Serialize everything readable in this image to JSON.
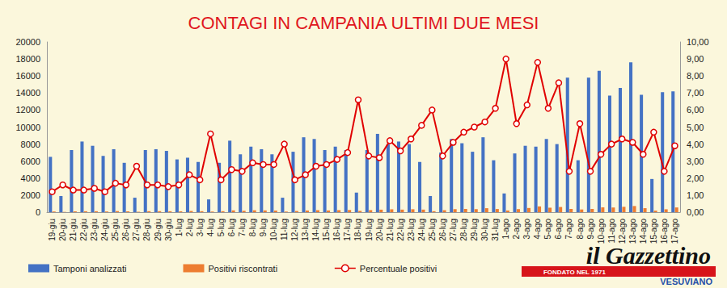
{
  "chart_data": {
    "type": "bar",
    "title": "CONTAGI IN CAMPANIA ULTIMI DUE MESI",
    "annotations": [
      "il Gazzettino",
      "VESUVIANO",
      "FONDATO NEL 1971"
    ],
    "categories": [
      "19-giu",
      "20-giu",
      "21-giu",
      "22-giu",
      "23-giu",
      "24-giu",
      "25-giu",
      "26-giu",
      "27-giu",
      "28-giu",
      "29-giu",
      "30-giu",
      "1-lug",
      "2-lug",
      "3-lug",
      "4-lug",
      "5-lug",
      "6-lug",
      "7-lug",
      "8-lug",
      "9-lug",
      "10-lug",
      "11-lug",
      "12-lug",
      "13-lug",
      "14-lug",
      "15-lug",
      "16-lug",
      "17-lug",
      "18-lug",
      "19-lug",
      "20-lug",
      "21-lug",
      "22-lug",
      "23-lug",
      "24-lug",
      "25-lug",
      "26-lug",
      "27-lug",
      "28-lug",
      "29-lug",
      "30-lug",
      "31-lug",
      "1-ago",
      "2-ago",
      "3-ago",
      "4-ago",
      "5-ago",
      "6-ago",
      "7-ago",
      "8-ago",
      "9-ago",
      "10-ago",
      "11-ago",
      "12-ago",
      "13-ago",
      "14-ago",
      "15-ago",
      "16-ago",
      "17-ago"
    ],
    "series": [
      {
        "name": "Tamponi analizzati",
        "type": "bar",
        "color": "#4472c4",
        "values": [
          6500,
          1900,
          7300,
          8300,
          7800,
          6600,
          7400,
          5800,
          1700,
          7300,
          7400,
          7200,
          6200,
          6400,
          5900,
          1500,
          5800,
          8400,
          6800,
          7700,
          7400,
          6800,
          1700,
          7100,
          8800,
          8600,
          7300,
          7700,
          7300,
          2300,
          7300,
          9200,
          8000,
          8300,
          8000,
          5900,
          1900,
          7000,
          8600,
          8100,
          7100,
          8800,
          6100,
          2200,
          6900,
          7800,
          7700,
          8600,
          8000,
          15800,
          6100,
          15800,
          16600,
          13700,
          14600,
          17600,
          13800,
          3900,
          14100,
          14200
        ]
      },
      {
        "name": "Positivi riscontrati",
        "type": "bar",
        "color": "#ed7d31",
        "values": [
          78,
          30,
          95,
          108,
          109,
          79,
          126,
          93,
          46,
          117,
          118,
          108,
          99,
          141,
          112,
          69,
          110,
          210,
          163,
          223,
          207,
          190,
          68,
          135,
          194,
          232,
          204,
          239,
          256,
          152,
          241,
          294,
          336,
          299,
          344,
          301,
          114,
          231,
          353,
          381,
          355,
          466,
          372,
          198,
          359,
          491,
          678,
          525,
          608,
          379,
          317,
          379,
          564,
          548,
          628,
          722,
          469,
          183,
          338,
          554
        ]
      },
      {
        "name": "Percentuale positivi",
        "type": "line",
        "axis": "y2",
        "color": "#e00000",
        "marker": "circle",
        "values": [
          1.2,
          1.6,
          1.3,
          1.3,
          1.4,
          1.2,
          1.7,
          1.6,
          2.7,
          1.6,
          1.6,
          1.5,
          1.6,
          2.2,
          1.9,
          4.6,
          1.9,
          2.5,
          2.4,
          2.9,
          2.8,
          2.8,
          4.0,
          1.9,
          2.2,
          2.7,
          2.8,
          3.1,
          3.5,
          6.6,
          3.3,
          3.2,
          4.2,
          3.6,
          4.3,
          5.1,
          6.0,
          3.3,
          4.1,
          4.7,
          5.0,
          5.3,
          6.1,
          9.0,
          5.2,
          6.3,
          8.8,
          6.1,
          7.6,
          2.4,
          5.2,
          2.4,
          3.4,
          4.0,
          4.3,
          4.1,
          3.4,
          4.7,
          2.4,
          3.9
        ]
      }
    ],
    "ylim": [
      0,
      20000
    ],
    "yticks": [
      0,
      2000,
      4000,
      6000,
      8000,
      10000,
      12000,
      14000,
      16000,
      18000,
      20000
    ],
    "y2lim": [
      0,
      10
    ],
    "y2ticks": [
      {
        "value": 0,
        "label": "0,00"
      },
      {
        "value": 1,
        "label": "1,00"
      },
      {
        "value": 2,
        "label": "2,00"
      },
      {
        "value": 3,
        "label": "3,00"
      },
      {
        "value": 4,
        "label": "4,00"
      },
      {
        "value": 5,
        "label": "5,00"
      },
      {
        "value": 6,
        "label": "6,00"
      },
      {
        "value": 7,
        "label": "7,00"
      },
      {
        "value": 8,
        "label": "8,00"
      },
      {
        "value": 9,
        "label": "9,00"
      },
      {
        "value": 10,
        "label": "10,00"
      }
    ],
    "grid": false,
    "legend": "bottom"
  }
}
